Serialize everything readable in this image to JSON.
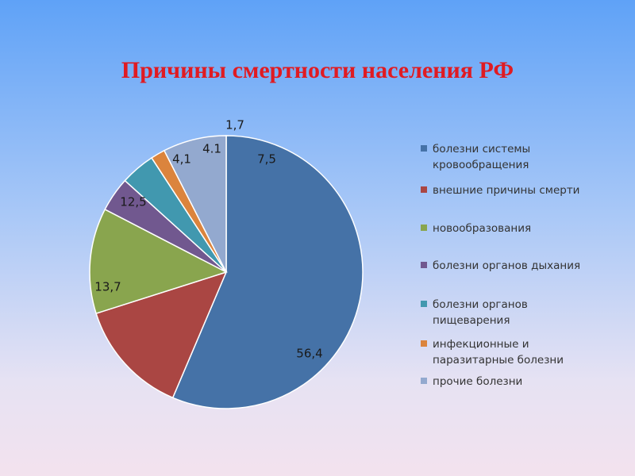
{
  "title": "Причины смертности населения РФ",
  "chart_data": {
    "type": "pie",
    "title": "Причины смертности населения РФ",
    "start_angle_deg": 0,
    "direction": "clockwise",
    "legend_position": "right",
    "slices": [
      {
        "label": "болезни системы кровообращения",
        "legend_text": "болезни системы\nкровообращения",
        "value": 56.4,
        "value_text": "56,4",
        "color": "#4572a7"
      },
      {
        "label": "внешние причины смерти",
        "legend_text": "внешние причины смерти",
        "value": 13.7,
        "value_text": "13,7",
        "color": "#aa4643"
      },
      {
        "label": "новообразования",
        "legend_text": "новообразования",
        "value": 12.5,
        "value_text": "12,5",
        "color": "#89a54e"
      },
      {
        "label": "болезни органов дыхания",
        "legend_text": "болезни органов дыхания",
        "value": 4.1,
        "value_text": "4,1",
        "color": "#71588f"
      },
      {
        "label": "болезни органов пищеварения",
        "legend_text": "болезни органов\nпищеварения",
        "value": 4.1,
        "value_text": "4.1",
        "color": "#4198af"
      },
      {
        "label": "инфекционные и паразитарные болезни",
        "legend_text": "инфекционные и\nпаразитарные болезни",
        "value": 1.7,
        "value_text": "1,7",
        "color": "#db843d"
      },
      {
        "label": "прочие болезни",
        "legend_text": "прочие болезни",
        "value": 7.5,
        "value_text": "7,5",
        "color": "#93a9cf"
      }
    ]
  }
}
